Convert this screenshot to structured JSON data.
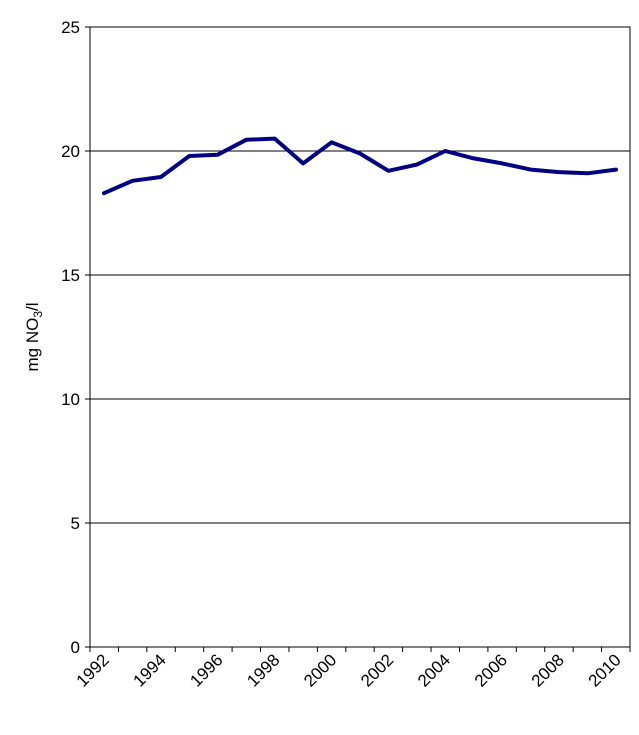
{
  "chart_data": {
    "type": "line",
    "title": "",
    "xlabel": "",
    "ylabel": {
      "prefix": "mg NO",
      "subscript": "3",
      "suffix": "/l"
    },
    "xlim": [
      1992,
      2010
    ],
    "ylim": [
      0,
      25
    ],
    "y_ticks": [
      0,
      5,
      10,
      15,
      20,
      25
    ],
    "x_tick_labels": [
      "1992",
      "1994",
      "1996",
      "1998",
      "2000",
      "2002",
      "2004",
      "2006",
      "2008",
      "2010"
    ],
    "grid": "horizontal",
    "legend": "none",
    "series": [
      {
        "color": "#000080",
        "x": [
          1992,
          1993,
          1994,
          1995,
          1996,
          1997,
          1998,
          1999,
          2000,
          2001,
          2002,
          2003,
          2004,
          2005,
          2006,
          2007,
          2008,
          2009,
          2010
        ],
        "y": [
          18.3,
          18.8,
          18.95,
          19.8,
          19.85,
          20.45,
          20.5,
          19.5,
          20.35,
          19.9,
          19.2,
          19.45,
          20.0,
          19.7,
          19.5,
          19.25,
          19.15,
          19.1,
          19.25
        ]
      }
    ]
  }
}
